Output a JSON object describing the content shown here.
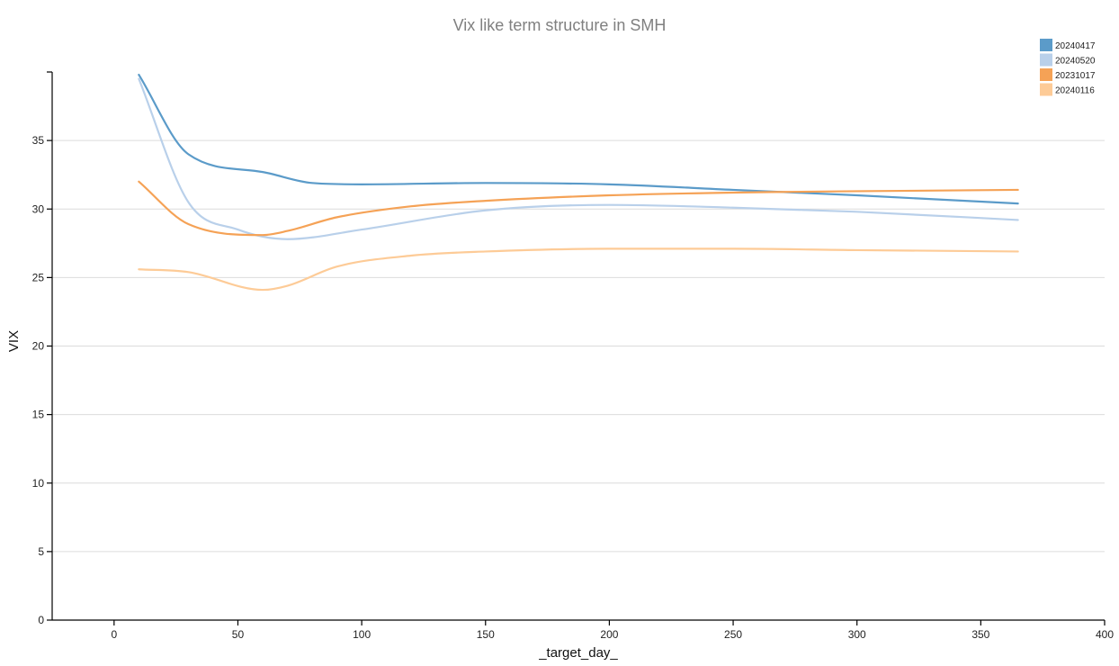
{
  "chart_data": {
    "type": "line",
    "title": "Vix like term structure in SMH",
    "xlabel": "_target_day_",
    "ylabel": "VIX",
    "xlim": [
      -25,
      400
    ],
    "ylim": [
      0,
      40
    ],
    "x_ticks": [
      0,
      50,
      100,
      150,
      200,
      250,
      300,
      350,
      400
    ],
    "y_ticks": [
      0,
      5,
      10,
      15,
      20,
      25,
      30,
      35
    ],
    "grid": "horizontal",
    "legend_position": "top-right",
    "series": [
      {
        "name": "20240417",
        "color": "#5b9bc9",
        "x": [
          10,
          30,
          60,
          80,
          100,
          150,
          200,
          250,
          300,
          365
        ],
        "values": [
          39.8,
          34.0,
          32.7,
          31.9,
          31.8,
          31.9,
          31.8,
          31.4,
          31.0,
          30.4
        ]
      },
      {
        "name": "20240520",
        "color": "#b9d0ea",
        "x": [
          10,
          30,
          50,
          70,
          100,
          150,
          200,
          250,
          300,
          365
        ],
        "values": [
          39.5,
          30.5,
          28.5,
          27.8,
          28.5,
          29.9,
          30.3,
          30.1,
          29.8,
          29.2
        ]
      },
      {
        "name": "20231017",
        "color": "#f5a256",
        "x": [
          10,
          30,
          60,
          70,
          90,
          120,
          150,
          200,
          250,
          300,
          365
        ],
        "values": [
          32.0,
          28.9,
          28.1,
          28.4,
          29.4,
          30.2,
          30.6,
          31.0,
          31.2,
          31.3,
          31.4
        ]
      },
      {
        "name": "20240116",
        "color": "#fdcb97",
        "x": [
          10,
          30,
          60,
          70,
          90,
          120,
          150,
          200,
          250,
          300,
          365
        ],
        "values": [
          25.6,
          25.4,
          24.1,
          24.4,
          25.8,
          26.6,
          26.9,
          27.1,
          27.1,
          27.0,
          26.9
        ]
      }
    ]
  }
}
